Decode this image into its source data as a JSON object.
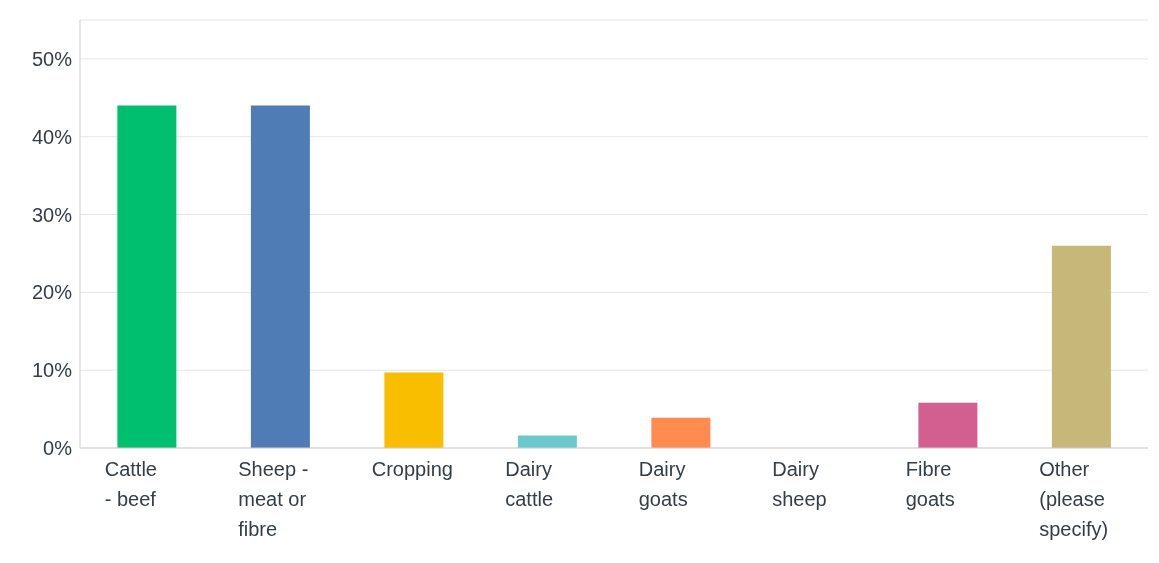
{
  "chart_data": {
    "type": "bar",
    "categories": [
      "Cattle - beef",
      "Sheep - meat or fibre",
      "Cropping",
      "Dairy cattle",
      "Dairy goats",
      "Dairy sheep",
      "Fibre goats",
      "Other (please specify)"
    ],
    "values": [
      44,
      44,
      9.7,
      1.6,
      3.9,
      0,
      5.8,
      26
    ],
    "colors": [
      "#00bf6f",
      "#507cb6",
      "#f9be00",
      "#6bc8cd",
      "#ff8b4f",
      "#a0a0a0",
      "#d25f90",
      "#c7b879"
    ],
    "ylim": [
      0,
      55
    ],
    "yticks": [
      {
        "value": 0,
        "label": "0%"
      },
      {
        "value": 10,
        "label": "10%"
      },
      {
        "value": 20,
        "label": "20%"
      },
      {
        "value": 30,
        "label": "30%"
      },
      {
        "value": 40,
        "label": "40%"
      },
      {
        "value": 50,
        "label": "50%"
      }
    ],
    "grid": "y",
    "legend": false
  }
}
